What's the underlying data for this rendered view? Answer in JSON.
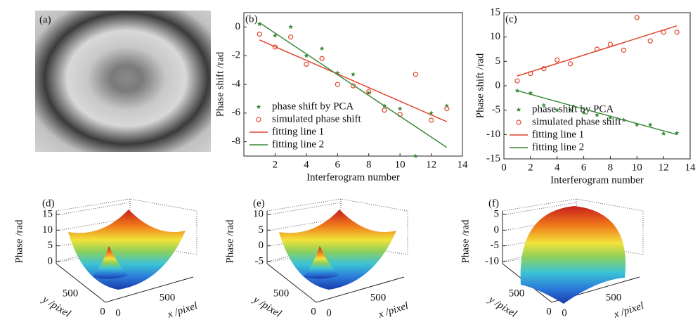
{
  "chart_data": [
    {
      "type": "image",
      "label": "(a)"
    },
    {
      "type": "xy",
      "label": "(b)",
      "xlabel": "Interferogram number",
      "ylabel": "Phase shift /rad",
      "xlim": [
        0,
        14
      ],
      "xticks": [
        2,
        4,
        6,
        8,
        10,
        12,
        14
      ],
      "ylim": [
        -9,
        1
      ],
      "yticks": [
        -8,
        -6,
        -4,
        -2,
        0
      ],
      "legend": "lower left",
      "series": [
        {
          "name": "phase shift by PCA",
          "color": "#3a8a3a",
          "marker": "star",
          "x": [
            1,
            2,
            3,
            4,
            5,
            6,
            7,
            8,
            9,
            10,
            11,
            12,
            13
          ],
          "values": [
            0.2,
            -0.6,
            0,
            -2,
            -1.5,
            -3.2,
            -3.3,
            -4.6,
            -5.5,
            -5.7,
            -9,
            -6,
            -5.5
          ]
        },
        {
          "name": "simulated phase shift",
          "color": "#e0452b",
          "marker": "circle",
          "x": [
            1,
            2,
            3,
            4,
            5,
            6,
            7,
            8,
            9,
            10,
            11,
            12,
            13
          ],
          "values": [
            -0.5,
            -1.4,
            -0.7,
            -2.6,
            -2.2,
            -4,
            -4.1,
            -4.5,
            -5.8,
            -6.1,
            -3.3,
            -6.5,
            -5.7
          ]
        },
        {
          "name": "fitting line 1",
          "color": "#e0452b",
          "marker": "line",
          "x": [
            1,
            13
          ],
          "values": [
            -0.9,
            -6.6
          ]
        },
        {
          "name": "fitting line 2",
          "color": "#3a8a3a",
          "marker": "line",
          "x": [
            1,
            13
          ],
          "values": [
            0.3,
            -8.4
          ]
        }
      ]
    },
    {
      "type": "xy",
      "label": "(c)",
      "xlabel": "Interferogram number",
      "ylabel": "Phase shift /rad",
      "xlim": [
        0,
        14
      ],
      "xticks": [
        0,
        2,
        4,
        6,
        8,
        10,
        12,
        14
      ],
      "ylim": [
        -15,
        15
      ],
      "yticks": [
        -15,
        -10,
        -5,
        0,
        5,
        10,
        15
      ],
      "legend": "lower left",
      "series": [
        {
          "name": "phase shift by PCA",
          "color": "#3a8a3a",
          "marker": "star",
          "x": [
            1,
            2,
            3,
            4,
            5,
            6,
            7,
            8,
            9,
            10,
            11,
            12,
            13
          ],
          "values": [
            -1,
            -1.5,
            -4,
            -5,
            -5,
            -5.5,
            -6,
            -6.5,
            -7,
            -8,
            -8,
            -9.8,
            -9.7
          ]
        },
        {
          "name": "simulated phase shift",
          "color": "#e0452b",
          "marker": "circle",
          "x": [
            1,
            2,
            3,
            4,
            5,
            7,
            8,
            9,
            10,
            11,
            12,
            13
          ],
          "values": [
            1,
            2.5,
            3.5,
            5.3,
            4.5,
            7.5,
            8.5,
            7.3,
            14,
            9.2,
            11,
            11
          ]
        },
        {
          "name": "fitting line 1",
          "color": "#e0452b",
          "marker": "line",
          "x": [
            1,
            13
          ],
          "values": [
            2,
            12.3
          ]
        },
        {
          "name": "fitting line 2",
          "color": "#3a8a3a",
          "marker": "line",
          "x": [
            1,
            13
          ],
          "values": [
            -1,
            -10
          ]
        }
      ]
    },
    {
      "type": "surface",
      "label": "(d)",
      "zlabel": "Phase /rad",
      "xlabel": "x /pixel",
      "ylabel": "y /pixel",
      "zlim": [
        0,
        15
      ],
      "zticks": [
        0,
        5,
        10,
        15
      ],
      "xticks": [
        0,
        500
      ],
      "yticks": [
        0,
        500
      ]
    },
    {
      "type": "surface",
      "label": "(e)",
      "zlabel": "Phase /rad",
      "xlabel": "x /pixel",
      "ylabel": "y /pixel",
      "zlim": [
        -5,
        10
      ],
      "zticks": [
        -5,
        0,
        5,
        10
      ],
      "xticks": [
        0,
        500
      ],
      "yticks": [
        0,
        500
      ]
    },
    {
      "type": "surface",
      "label": "(f)",
      "zlabel": "Phase /rad",
      "xlabel": "x /pixel",
      "ylabel": "y /pixel",
      "zlim": [
        -10,
        5
      ],
      "zticks": [
        -10,
        -5,
        0,
        5
      ],
      "xticks": [
        0,
        500
      ],
      "yticks": [
        0,
        500
      ]
    }
  ]
}
